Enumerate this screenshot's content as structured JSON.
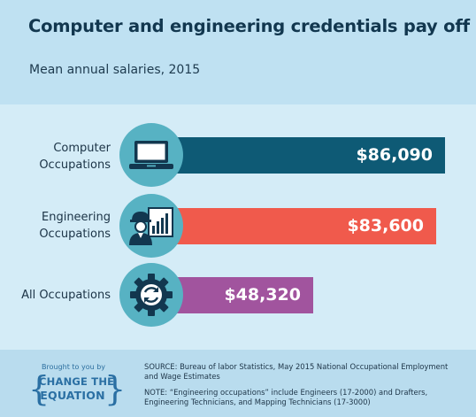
{
  "title": "Computer and engineering credentials pay off",
  "subtitle": "Mean annual salaries, 2015",
  "colors": {
    "computer_bar": "#0e5a75",
    "engineering_bar": "#f05a4c",
    "all_bar": "#a1549e",
    "icon_circle": "#57b2c3",
    "icon_dark": "#12374f"
  },
  "chart_data": {
    "type": "bar",
    "orientation": "horizontal",
    "title": "Computer and engineering credentials pay off",
    "subtitle": "Mean annual salaries, 2015",
    "categories": [
      "Computer Occupations",
      "Engineering Occupations",
      "All Occupations"
    ],
    "category_lines": [
      [
        "Computer",
        "Occupations"
      ],
      [
        "Engineering",
        "Occupations"
      ],
      [
        "All Occupations"
      ]
    ],
    "values": [
      86090,
      83600,
      48320
    ],
    "value_labels": [
      "$86,090",
      "$83,600",
      "$48,320"
    ],
    "icons": [
      "laptop-icon",
      "engineer-chart-icon",
      "gear-sync-icon"
    ],
    "xlim": [
      0,
      89000
    ],
    "grid": false,
    "legend": "none"
  },
  "footer": {
    "brought_by": "Brought to you by",
    "logo_line1": "CHANGE THE",
    "logo_line2": "EQUATION",
    "source": "SOURCE: Bureau of labor Statistics, May 2015 National Occupational Employment and Wage Estimates",
    "note": "NOTE: “Engineering occupations” include Engineers (17-2000) and Drafters, Engineering Technicians, and Mapping Technicians (17-3000)"
  }
}
